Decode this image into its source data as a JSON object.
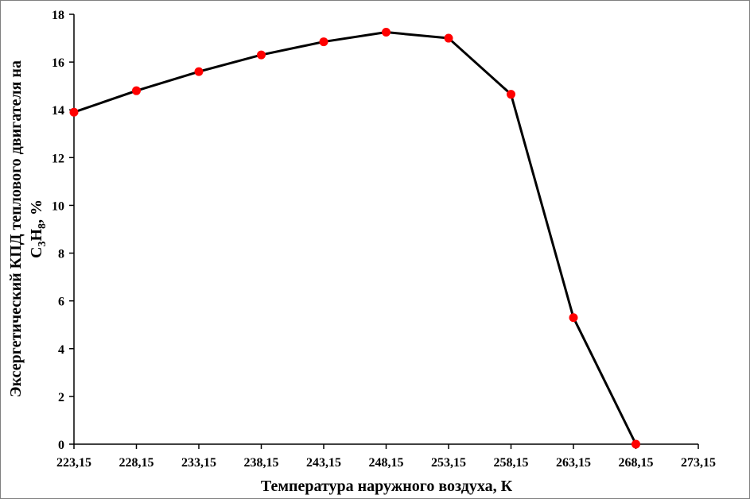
{
  "chart_data": {
    "type": "line",
    "title": "",
    "xlabel": "Температура наружного воздуха, К",
    "ylabel_line1": "Эксергетический КПД теплового двигателя на",
    "ylabel_line2_parts": [
      "C",
      "3",
      "H",
      "8",
      ", %"
    ],
    "x_ticks": [
      "223,15",
      "228,15",
      "233,15",
      "238,15",
      "243,15",
      "248,15",
      "253,15",
      "258,15",
      "263,15",
      "268,15",
      "273,15"
    ],
    "y_ticks": [
      "0",
      "2",
      "4",
      "6",
      "8",
      "10",
      "12",
      "14",
      "16",
      "18"
    ],
    "xlim": [
      223.15,
      273.15
    ],
    "ylim": [
      0,
      18
    ],
    "grid": false,
    "series": [
      {
        "x": [
          223.15,
          228.15,
          233.15,
          238.15,
          243.15,
          248.15,
          253.15,
          258.15,
          263.15,
          268.15
        ],
        "y": [
          13.9,
          14.8,
          15.6,
          16.3,
          16.85,
          17.25,
          17.0,
          14.65,
          5.3,
          0.0
        ]
      }
    ],
    "line_color": "#000000",
    "marker_color": "#ff0000"
  }
}
